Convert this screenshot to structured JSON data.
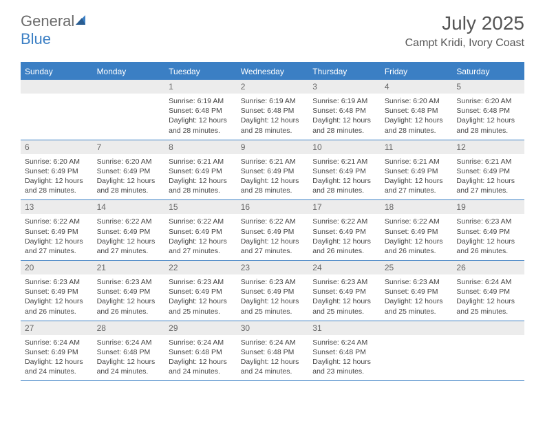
{
  "logo": {
    "text_general": "General",
    "text_blue": "Blue"
  },
  "header": {
    "month": "July 2025",
    "location": "Campt Kridi, Ivory Coast"
  },
  "colors": {
    "accent": "#3b7fc4",
    "header_text": "#ffffff",
    "daynum_bg": "#ececec",
    "text": "#444444",
    "title": "#555555"
  },
  "daynames": [
    "Sunday",
    "Monday",
    "Tuesday",
    "Wednesday",
    "Thursday",
    "Friday",
    "Saturday"
  ],
  "weeks": [
    [
      null,
      null,
      {
        "d": "1",
        "sr": "6:19 AM",
        "ss": "6:48 PM",
        "dl": "12 hours and 28 minutes."
      },
      {
        "d": "2",
        "sr": "6:19 AM",
        "ss": "6:48 PM",
        "dl": "12 hours and 28 minutes."
      },
      {
        "d": "3",
        "sr": "6:19 AM",
        "ss": "6:48 PM",
        "dl": "12 hours and 28 minutes."
      },
      {
        "d": "4",
        "sr": "6:20 AM",
        "ss": "6:48 PM",
        "dl": "12 hours and 28 minutes."
      },
      {
        "d": "5",
        "sr": "6:20 AM",
        "ss": "6:48 PM",
        "dl": "12 hours and 28 minutes."
      }
    ],
    [
      {
        "d": "6",
        "sr": "6:20 AM",
        "ss": "6:49 PM",
        "dl": "12 hours and 28 minutes."
      },
      {
        "d": "7",
        "sr": "6:20 AM",
        "ss": "6:49 PM",
        "dl": "12 hours and 28 minutes."
      },
      {
        "d": "8",
        "sr": "6:21 AM",
        "ss": "6:49 PM",
        "dl": "12 hours and 28 minutes."
      },
      {
        "d": "9",
        "sr": "6:21 AM",
        "ss": "6:49 PM",
        "dl": "12 hours and 28 minutes."
      },
      {
        "d": "10",
        "sr": "6:21 AM",
        "ss": "6:49 PM",
        "dl": "12 hours and 28 minutes."
      },
      {
        "d": "11",
        "sr": "6:21 AM",
        "ss": "6:49 PM",
        "dl": "12 hours and 27 minutes."
      },
      {
        "d": "12",
        "sr": "6:21 AM",
        "ss": "6:49 PM",
        "dl": "12 hours and 27 minutes."
      }
    ],
    [
      {
        "d": "13",
        "sr": "6:22 AM",
        "ss": "6:49 PM",
        "dl": "12 hours and 27 minutes."
      },
      {
        "d": "14",
        "sr": "6:22 AM",
        "ss": "6:49 PM",
        "dl": "12 hours and 27 minutes."
      },
      {
        "d": "15",
        "sr": "6:22 AM",
        "ss": "6:49 PM",
        "dl": "12 hours and 27 minutes."
      },
      {
        "d": "16",
        "sr": "6:22 AM",
        "ss": "6:49 PM",
        "dl": "12 hours and 27 minutes."
      },
      {
        "d": "17",
        "sr": "6:22 AM",
        "ss": "6:49 PM",
        "dl": "12 hours and 26 minutes."
      },
      {
        "d": "18",
        "sr": "6:22 AM",
        "ss": "6:49 PM",
        "dl": "12 hours and 26 minutes."
      },
      {
        "d": "19",
        "sr": "6:23 AM",
        "ss": "6:49 PM",
        "dl": "12 hours and 26 minutes."
      }
    ],
    [
      {
        "d": "20",
        "sr": "6:23 AM",
        "ss": "6:49 PM",
        "dl": "12 hours and 26 minutes."
      },
      {
        "d": "21",
        "sr": "6:23 AM",
        "ss": "6:49 PM",
        "dl": "12 hours and 26 minutes."
      },
      {
        "d": "22",
        "sr": "6:23 AM",
        "ss": "6:49 PM",
        "dl": "12 hours and 25 minutes."
      },
      {
        "d": "23",
        "sr": "6:23 AM",
        "ss": "6:49 PM",
        "dl": "12 hours and 25 minutes."
      },
      {
        "d": "24",
        "sr": "6:23 AM",
        "ss": "6:49 PM",
        "dl": "12 hours and 25 minutes."
      },
      {
        "d": "25",
        "sr": "6:23 AM",
        "ss": "6:49 PM",
        "dl": "12 hours and 25 minutes."
      },
      {
        "d": "26",
        "sr": "6:24 AM",
        "ss": "6:49 PM",
        "dl": "12 hours and 25 minutes."
      }
    ],
    [
      {
        "d": "27",
        "sr": "6:24 AM",
        "ss": "6:49 PM",
        "dl": "12 hours and 24 minutes."
      },
      {
        "d": "28",
        "sr": "6:24 AM",
        "ss": "6:48 PM",
        "dl": "12 hours and 24 minutes."
      },
      {
        "d": "29",
        "sr": "6:24 AM",
        "ss": "6:48 PM",
        "dl": "12 hours and 24 minutes."
      },
      {
        "d": "30",
        "sr": "6:24 AM",
        "ss": "6:48 PM",
        "dl": "12 hours and 24 minutes."
      },
      {
        "d": "31",
        "sr": "6:24 AM",
        "ss": "6:48 PM",
        "dl": "12 hours and 23 minutes."
      },
      null,
      null
    ]
  ],
  "labels": {
    "sunrise": "Sunrise:",
    "sunset": "Sunset:",
    "daylight": "Daylight:"
  }
}
